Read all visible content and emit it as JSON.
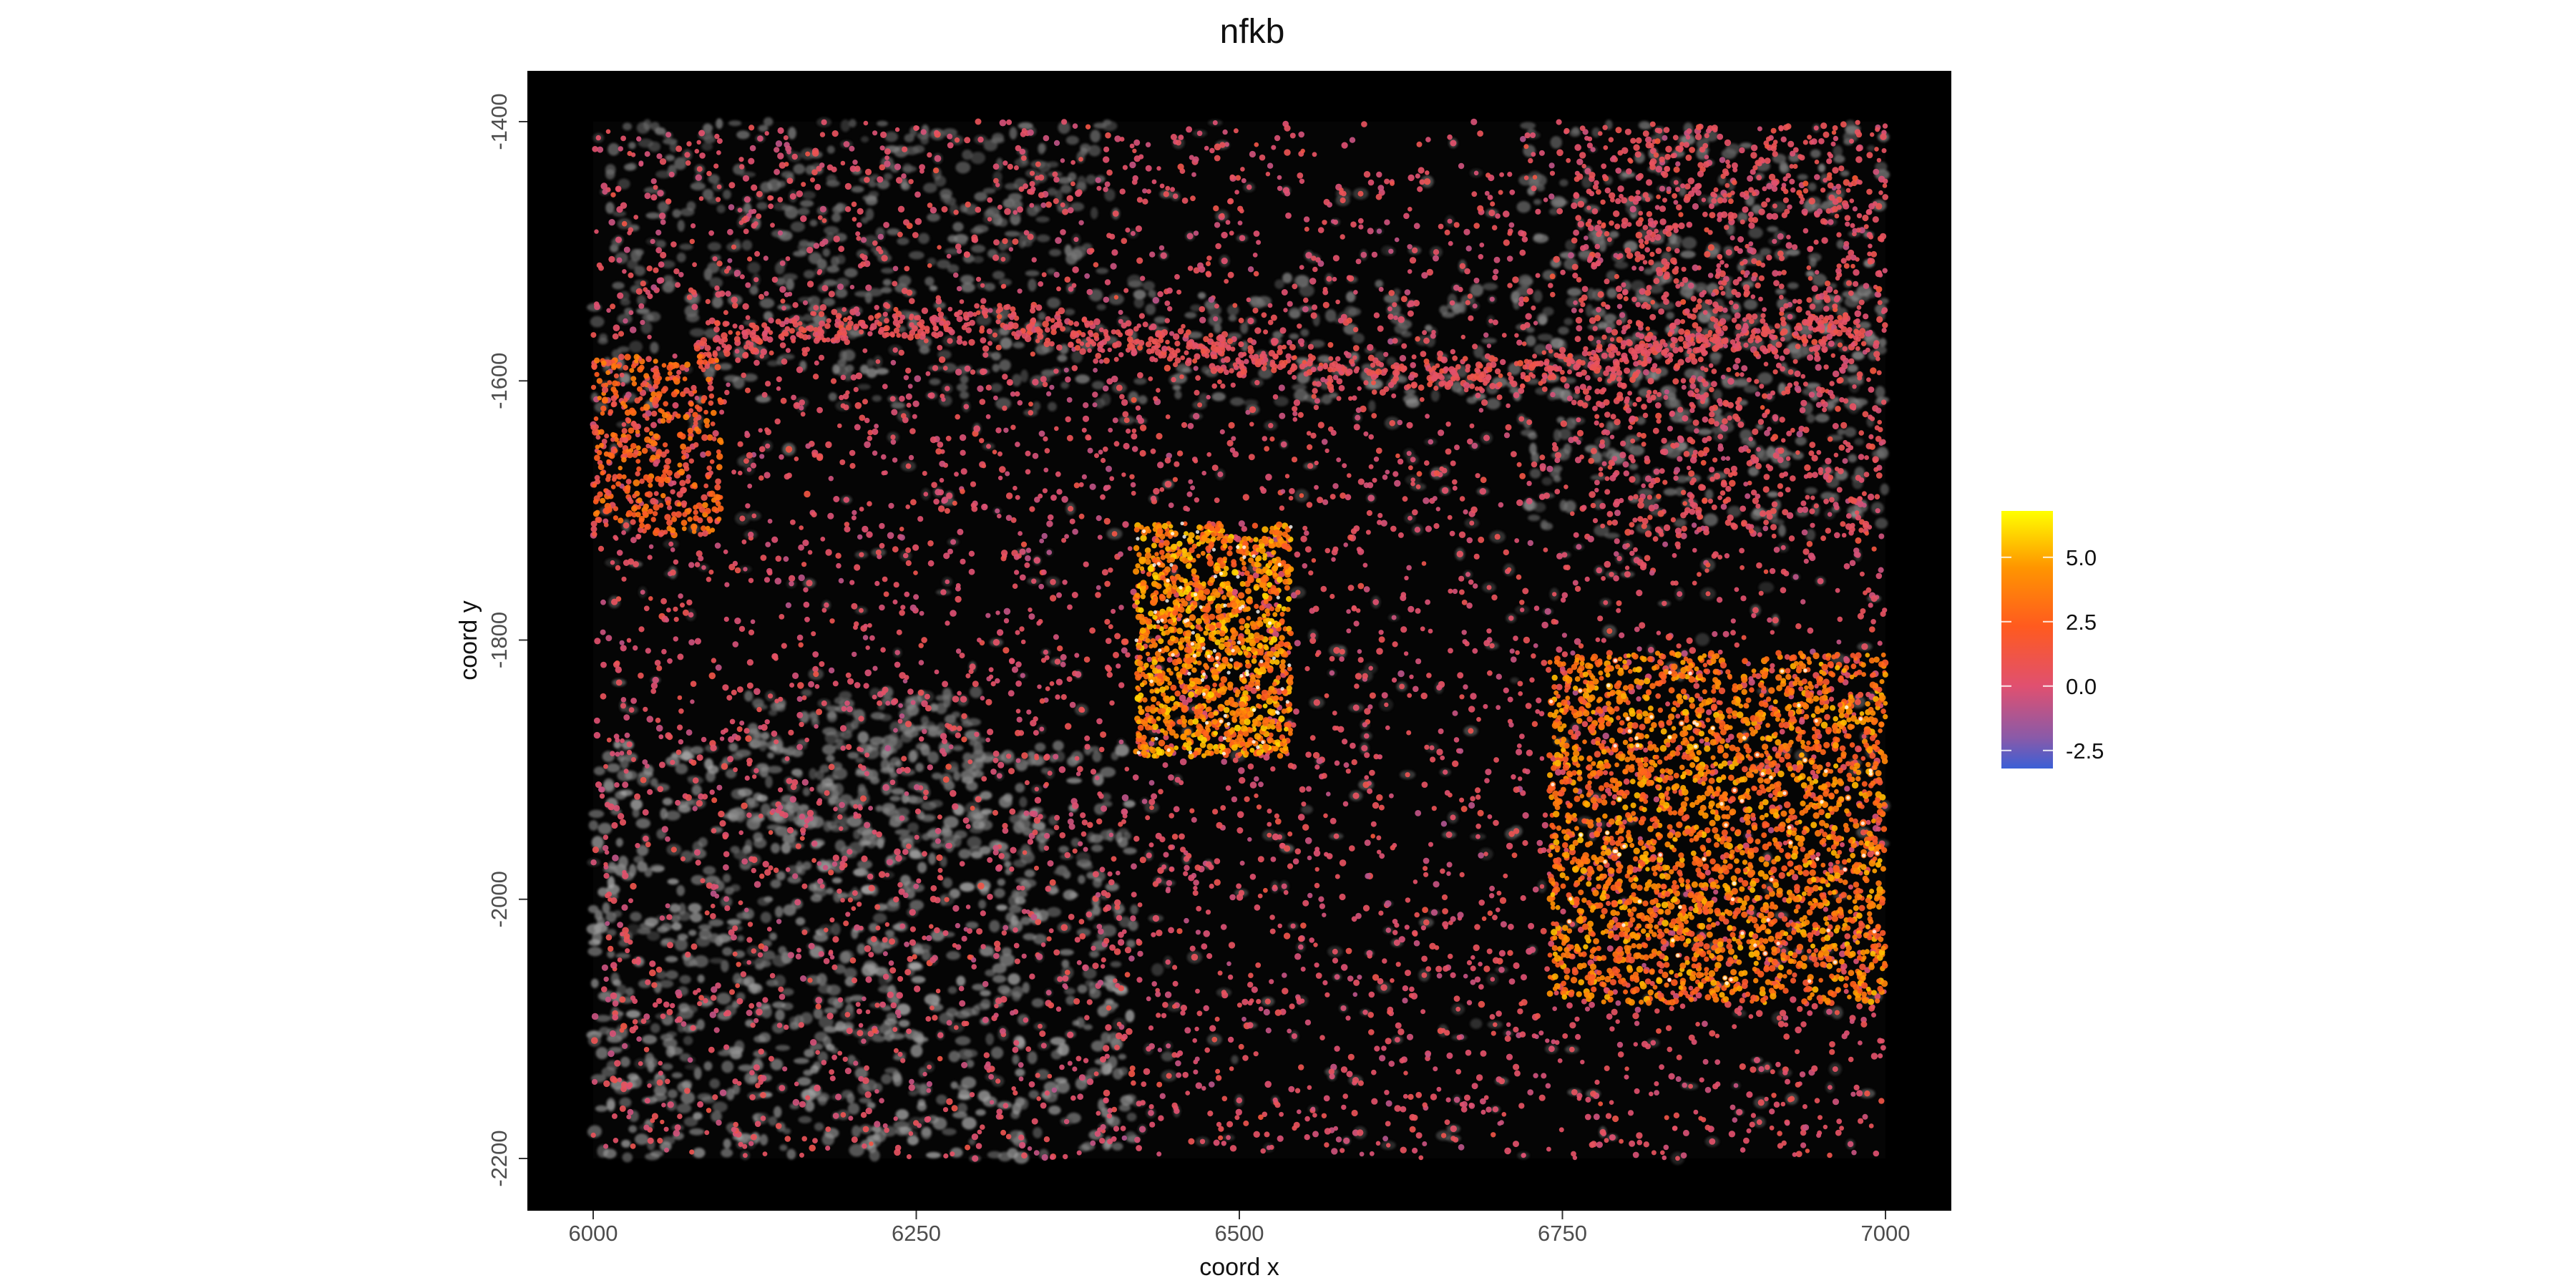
{
  "chart_data": {
    "type": "scatter",
    "title": "nfkb",
    "xlabel": "coord x",
    "ylabel": "coord y",
    "xlim": [
      5950,
      7100
    ],
    "ylim": [
      -2240,
      -1360
    ],
    "x_ticks": [
      6000,
      6250,
      6500,
      6750,
      7000
    ],
    "y_ticks": [
      -1400,
      -1600,
      -1800,
      -2000,
      -2200
    ],
    "x_tick_labels": [
      "6000",
      "6250",
      "6500",
      "6750",
      "7000"
    ],
    "y_tick_labels": [
      "-1400",
      "-1600",
      "-1800",
      "-2000",
      "-2200"
    ],
    "image_extent": {
      "x": [
        6000,
        7000
      ],
      "y": [
        -2200,
        -1400
      ]
    },
    "background": "grayscale tissue image on black panel",
    "legend": {
      "placement": "right",
      "type": "continuous colorbar",
      "range": [
        -3.2,
        6.8
      ],
      "ticks": [
        5.0,
        2.5,
        0.0,
        -2.5
      ],
      "tick_labels": [
        "5.0",
        "2.5",
        "0.0",
        "-2.5"
      ],
      "colors": {
        "low": "#3b5fd6",
        "mid_low": "#e05070",
        "mid": "#ff5a1f",
        "mid_high": "#ff9500",
        "high": "#ffff00"
      }
    },
    "point_color": "value on colorbar",
    "high_density_regions": [
      {
        "x_range": [
          6420,
          6540
        ],
        "y_range": [
          -1890,
          -1710
        ],
        "value_range": [
          2.0,
          6.0
        ]
      },
      {
        "x_range": [
          6740,
          7000
        ],
        "y_range": [
          -2080,
          -1810
        ],
        "value_range": [
          1.5,
          5.5
        ]
      },
      {
        "x_range": [
          6000,
          6100
        ],
        "y_range": [
          -1720,
          -1580
        ],
        "value_range": [
          0.5,
          4.0
        ]
      }
    ]
  }
}
